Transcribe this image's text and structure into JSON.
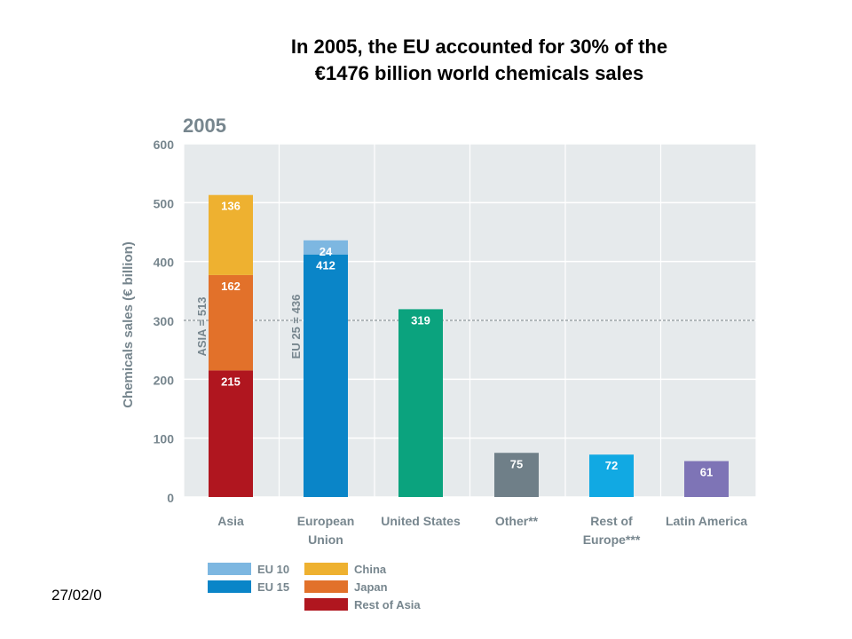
{
  "slide": {
    "title_line1": "In 2005, the EU accounted for 30% of the",
    "title_line2": "€1476 billion world chemicals sales",
    "date": "27/02/0"
  },
  "chart_data": {
    "type": "bar",
    "stacked": true,
    "year_label": "2005",
    "ylabel": "Chemicals sales (€ billion)",
    "xlabel": "",
    "ylim": [
      0,
      600
    ],
    "yticks": [
      0,
      100,
      200,
      300,
      400,
      500,
      600
    ],
    "grid": true,
    "categories": [
      "Asia",
      "European Union",
      "United States",
      "Other**",
      "Rest of Europe***",
      "Latin America"
    ],
    "category_label_lines": [
      [
        "Asia"
      ],
      [
        "European",
        "Union"
      ],
      [
        "United States"
      ],
      [
        "Other**"
      ],
      [
        "Rest of",
        "Europe***"
      ],
      [
        "Latin America"
      ]
    ],
    "bars": [
      {
        "category": "Asia",
        "segments": [
          {
            "name": "Rest of Asia",
            "value": 215,
            "color": "#b0161f"
          },
          {
            "name": "Japan",
            "value": 162,
            "color": "#e2712a"
          },
          {
            "name": "China",
            "value": 136,
            "color": "#eeb130"
          }
        ]
      },
      {
        "category": "European Union",
        "segments": [
          {
            "name": "EU 15",
            "value": 412,
            "color": "#0a85c8"
          },
          {
            "name": "EU 10",
            "value": 24,
            "color": "#7db7e1"
          }
        ]
      },
      {
        "category": "United States",
        "segments": [
          {
            "value": 319,
            "color": "#0ba37e"
          }
        ]
      },
      {
        "category": "Other**",
        "segments": [
          {
            "value": 75,
            "color": "#6f7f88"
          }
        ]
      },
      {
        "category": "Rest of Europe***",
        "segments": [
          {
            "value": 72,
            "color": "#11a9e3"
          }
        ]
      },
      {
        "category": "Latin America",
        "segments": [
          {
            "value": 61,
            "color": "#7e74b6"
          }
        ]
      }
    ],
    "annotations": [
      {
        "text": "ASIA = 513",
        "category": "Asia",
        "value": 513
      },
      {
        "text": "EU 25 = 436",
        "category": "European Union",
        "value": 436
      }
    ],
    "reference_line": {
      "value": 300,
      "style": "dashed"
    },
    "legend": {
      "placement": "bottom-left",
      "columns": [
        [
          {
            "name": "EU 10",
            "color": "#7db7e1"
          },
          {
            "name": "EU 15",
            "color": "#0a85c8"
          }
        ],
        [
          {
            "name": "China",
            "color": "#eeb130"
          },
          {
            "name": "Japan",
            "color": "#e2712a"
          },
          {
            "name": "Rest of Asia",
            "color": "#b0161f"
          }
        ]
      ]
    },
    "colors": {
      "plot_background": "#e6eaec",
      "grid": "#ffffff",
      "axis_text": "#77868e",
      "bar_label_light": "#ffffff",
      "bar_label_dark": "#ffffff"
    }
  }
}
